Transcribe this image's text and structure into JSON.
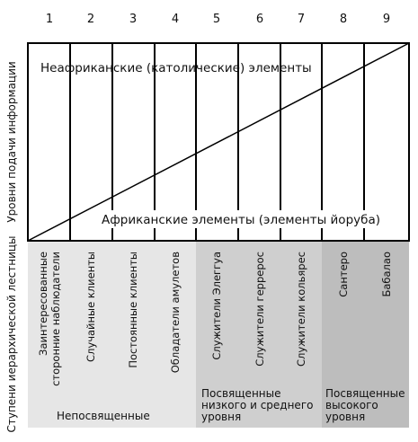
{
  "columns": [
    {
      "num": "1",
      "step": "Заинтересованные\nсторонние наблюдатели"
    },
    {
      "num": "2",
      "step": "Случайные клиенты"
    },
    {
      "num": "3",
      "step": "Постоянные клиенты"
    },
    {
      "num": "4",
      "step": "Обладатели амулетов"
    },
    {
      "num": "5",
      "step": "Служители Элеггуа"
    },
    {
      "num": "6",
      "step": "Служители геррерос"
    },
    {
      "num": "7",
      "step": "Служители кольярес"
    },
    {
      "num": "8",
      "step": "Сантеро"
    },
    {
      "num": "9",
      "step": "Бабалао"
    }
  ],
  "labels": {
    "y_axis_top": "Уровни подачи информации",
    "y_axis_bottom": "Ступени иерархической лестницы",
    "upper_region": "Неафриканские (католические) элементы",
    "lower_region": "Африканские элементы (элементы йоруба)"
  },
  "groups": [
    {
      "label": "Непосвященные",
      "color": "#e6e6e6"
    },
    {
      "label": "Посвященные\nнизкого и среднего\nуровня",
      "color": "#cfcfcf"
    },
    {
      "label": "Посвященные\nвысокого\nуровня",
      "color": "#bdbdbd"
    }
  ]
}
